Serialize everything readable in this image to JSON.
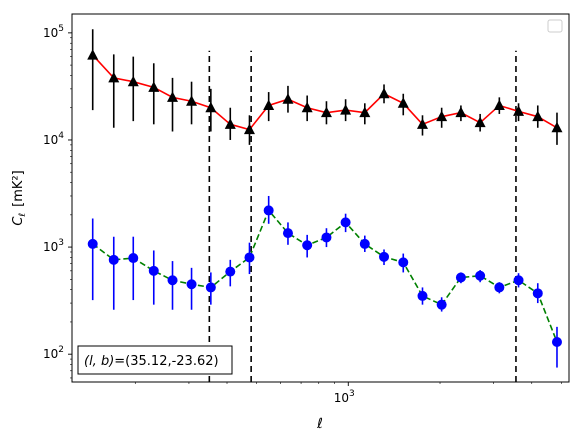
{
  "chart_data": {
    "type": "line",
    "xscale": "log",
    "yscale": "log",
    "xlim": [
      124,
      5300
    ],
    "ylim": [
      55,
      150000
    ],
    "xlabel": "ℓ",
    "ylabel": "C",
    "ylabel_sub": "ℓ",
    "ylabel_unit": "[mK²]",
    "x_tick_labels": [
      {
        "value": 1000,
        "base": "10",
        "exp": "3"
      }
    ],
    "y_tick_labels": [
      {
        "value": 100,
        "base": "10",
        "exp": "2"
      },
      {
        "value": 1000,
        "base": "10",
        "exp": "3"
      },
      {
        "value": 10000,
        "base": "10",
        "exp": "4"
      },
      {
        "value": 100000,
        "base": "10",
        "exp": "5"
      }
    ],
    "grid": false,
    "legend": {
      "placement": "top-right",
      "entries": []
    },
    "annotation": {
      "label": "(l, b)",
      "value": "=(35.12,-23.62)",
      "placement": "bottom-left"
    },
    "vertical_lines": [
      {
        "x": 350,
        "style": "dashed",
        "color": "#000000",
        "ymax": 68000
      },
      {
        "x": 480,
        "style": "dashed",
        "color": "#000000",
        "ymax": 68000
      },
      {
        "x": 3550,
        "style": "dashed",
        "color": "#000000",
        "ymax": 68000
      }
    ],
    "series": [
      {
        "marker": "triangle",
        "marker_color": "#000000",
        "line_color": "#ff0000",
        "line_style": "solid",
        "errorbar_color": "#000000",
        "points": [
          {
            "x": 145,
            "y": 62000,
            "lo": 19000,
            "hi": 108000
          },
          {
            "x": 170,
            "y": 38000,
            "lo": 13000,
            "hi": 63000
          },
          {
            "x": 197,
            "y": 35000,
            "lo": 15000,
            "hi": 60000
          },
          {
            "x": 230,
            "y": 31000,
            "lo": 14000,
            "hi": 52000
          },
          {
            "x": 265,
            "y": 25000,
            "lo": 12000,
            "hi": 38000
          },
          {
            "x": 306,
            "y": 23000,
            "lo": 14000,
            "hi": 35000
          },
          {
            "x": 354,
            "y": 20000,
            "lo": 12000,
            "hi": 30000
          },
          {
            "x": 410,
            "y": 14000,
            "lo": 10000,
            "hi": 20000
          },
          {
            "x": 474,
            "y": 12500,
            "lo": 9000,
            "hi": 17000
          },
          {
            "x": 548,
            "y": 21000,
            "lo": 15000,
            "hi": 28000
          },
          {
            "x": 634,
            "y": 24000,
            "lo": 18000,
            "hi": 32000
          },
          {
            "x": 733,
            "y": 20000,
            "lo": 15000,
            "hi": 26000
          },
          {
            "x": 848,
            "y": 18000,
            "lo": 14000,
            "hi": 23000
          },
          {
            "x": 980,
            "y": 19000,
            "lo": 15000,
            "hi": 24000
          },
          {
            "x": 1133,
            "y": 18000,
            "lo": 14000,
            "hi": 22000
          },
          {
            "x": 1310,
            "y": 27000,
            "lo": 22000,
            "hi": 33000
          },
          {
            "x": 1515,
            "y": 22000,
            "lo": 17000,
            "hi": 27000
          },
          {
            "x": 1752,
            "y": 14000,
            "lo": 11000,
            "hi": 17000
          },
          {
            "x": 2025,
            "y": 16500,
            "lo": 13000,
            "hi": 20000
          },
          {
            "x": 2342,
            "y": 18000,
            "lo": 15000,
            "hi": 21000
          },
          {
            "x": 2708,
            "y": 14500,
            "lo": 12000,
            "hi": 17500
          },
          {
            "x": 3131,
            "y": 21000,
            "lo": 17500,
            "hi": 25000
          },
          {
            "x": 3620,
            "y": 18500,
            "lo": 15000,
            "hi": 22000
          },
          {
            "x": 4186,
            "y": 16500,
            "lo": 13000,
            "hi": 21000
          },
          {
            "x": 4840,
            "y": 13000,
            "lo": 9000,
            "hi": 18000
          }
        ]
      },
      {
        "marker": "circle",
        "marker_color": "#0000ff",
        "line_color": "#008000",
        "line_style": "dashed",
        "errorbar_color": "#0000ff",
        "points": [
          {
            "x": 145,
            "y": 1070,
            "lo": 320,
            "hi": 1850
          },
          {
            "x": 170,
            "y": 760,
            "lo": 260,
            "hi": 1250
          },
          {
            "x": 197,
            "y": 790,
            "lo": 320,
            "hi": 1250
          },
          {
            "x": 230,
            "y": 600,
            "lo": 290,
            "hi": 930
          },
          {
            "x": 265,
            "y": 490,
            "lo": 260,
            "hi": 740
          },
          {
            "x": 306,
            "y": 450,
            "lo": 260,
            "hi": 640
          },
          {
            "x": 354,
            "y": 420,
            "lo": 290,
            "hi": 580
          },
          {
            "x": 410,
            "y": 590,
            "lo": 430,
            "hi": 760
          },
          {
            "x": 474,
            "y": 800,
            "lo": 560,
            "hi": 1100
          },
          {
            "x": 548,
            "y": 2200,
            "lo": 1650,
            "hi": 3000
          },
          {
            "x": 634,
            "y": 1350,
            "lo": 1050,
            "hi": 1700
          },
          {
            "x": 733,
            "y": 1040,
            "lo": 800,
            "hi": 1300
          },
          {
            "x": 848,
            "y": 1230,
            "lo": 1000,
            "hi": 1500
          },
          {
            "x": 980,
            "y": 1700,
            "lo": 1380,
            "hi": 2050
          },
          {
            "x": 1133,
            "y": 1070,
            "lo": 900,
            "hi": 1280
          },
          {
            "x": 1310,
            "y": 810,
            "lo": 680,
            "hi": 950
          },
          {
            "x": 1515,
            "y": 720,
            "lo": 580,
            "hi": 870
          },
          {
            "x": 1752,
            "y": 350,
            "lo": 290,
            "hi": 420
          },
          {
            "x": 2025,
            "y": 290,
            "lo": 250,
            "hi": 340
          },
          {
            "x": 2342,
            "y": 520,
            "lo": 460,
            "hi": 580
          },
          {
            "x": 2708,
            "y": 540,
            "lo": 470,
            "hi": 610
          },
          {
            "x": 3131,
            "y": 420,
            "lo": 370,
            "hi": 470
          },
          {
            "x": 3620,
            "y": 490,
            "lo": 420,
            "hi": 570
          },
          {
            "x": 4186,
            "y": 370,
            "lo": 300,
            "hi": 460
          },
          {
            "x": 4840,
            "y": 130,
            "lo": 75,
            "hi": 180
          }
        ]
      }
    ]
  }
}
